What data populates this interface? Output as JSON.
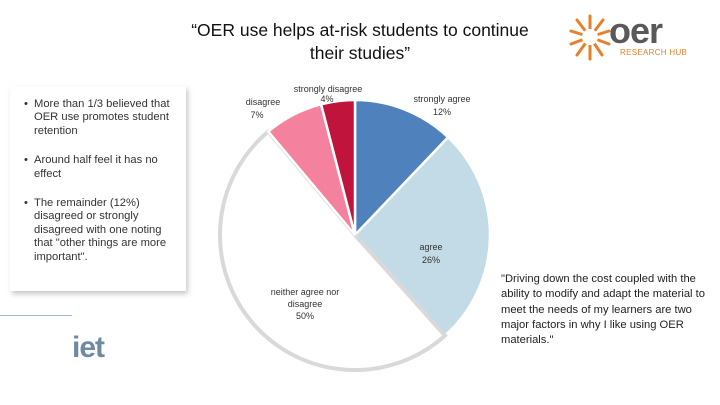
{
  "slide": {
    "title_line1": "“OER use helps at-risk students to continue",
    "title_line2": "their studies”",
    "logo": {
      "word": "oer",
      "tagline": "RESEARCH HUB",
      "color": "#e8802a"
    },
    "footer_logo": "iet",
    "bullets": [
      "More than 1/3 believed that OER use promotes student retention",
      "Around half feel it has no effect",
      "The remainder (12%) disagreed or strongly disagreed with one noting that \"other things are more important\"."
    ],
    "quote": "\"Driving down the cost coupled with the ability to modify and adapt the material to meet the needs of my learners are two major factors in why I like using OER materials.\""
  },
  "chart_data": {
    "type": "pie",
    "title": "",
    "slices": [
      {
        "label": "strongly agree",
        "value": 12,
        "value_label": "12%",
        "color": "#4f81bd"
      },
      {
        "label": "agree",
        "value": 26,
        "value_label": "26%",
        "color": "#c2dbe6"
      },
      {
        "label": "neither agree nor disagree",
        "value": 50,
        "value_label": "50%",
        "color": "#ffffff"
      },
      {
        "label": "disagree",
        "value": 7,
        "value_label": "7%",
        "color": "#f4829f"
      },
      {
        "label": "strongly disagree",
        "value": 4,
        "value_label": "4%",
        "color": "#c0143c"
      }
    ]
  }
}
